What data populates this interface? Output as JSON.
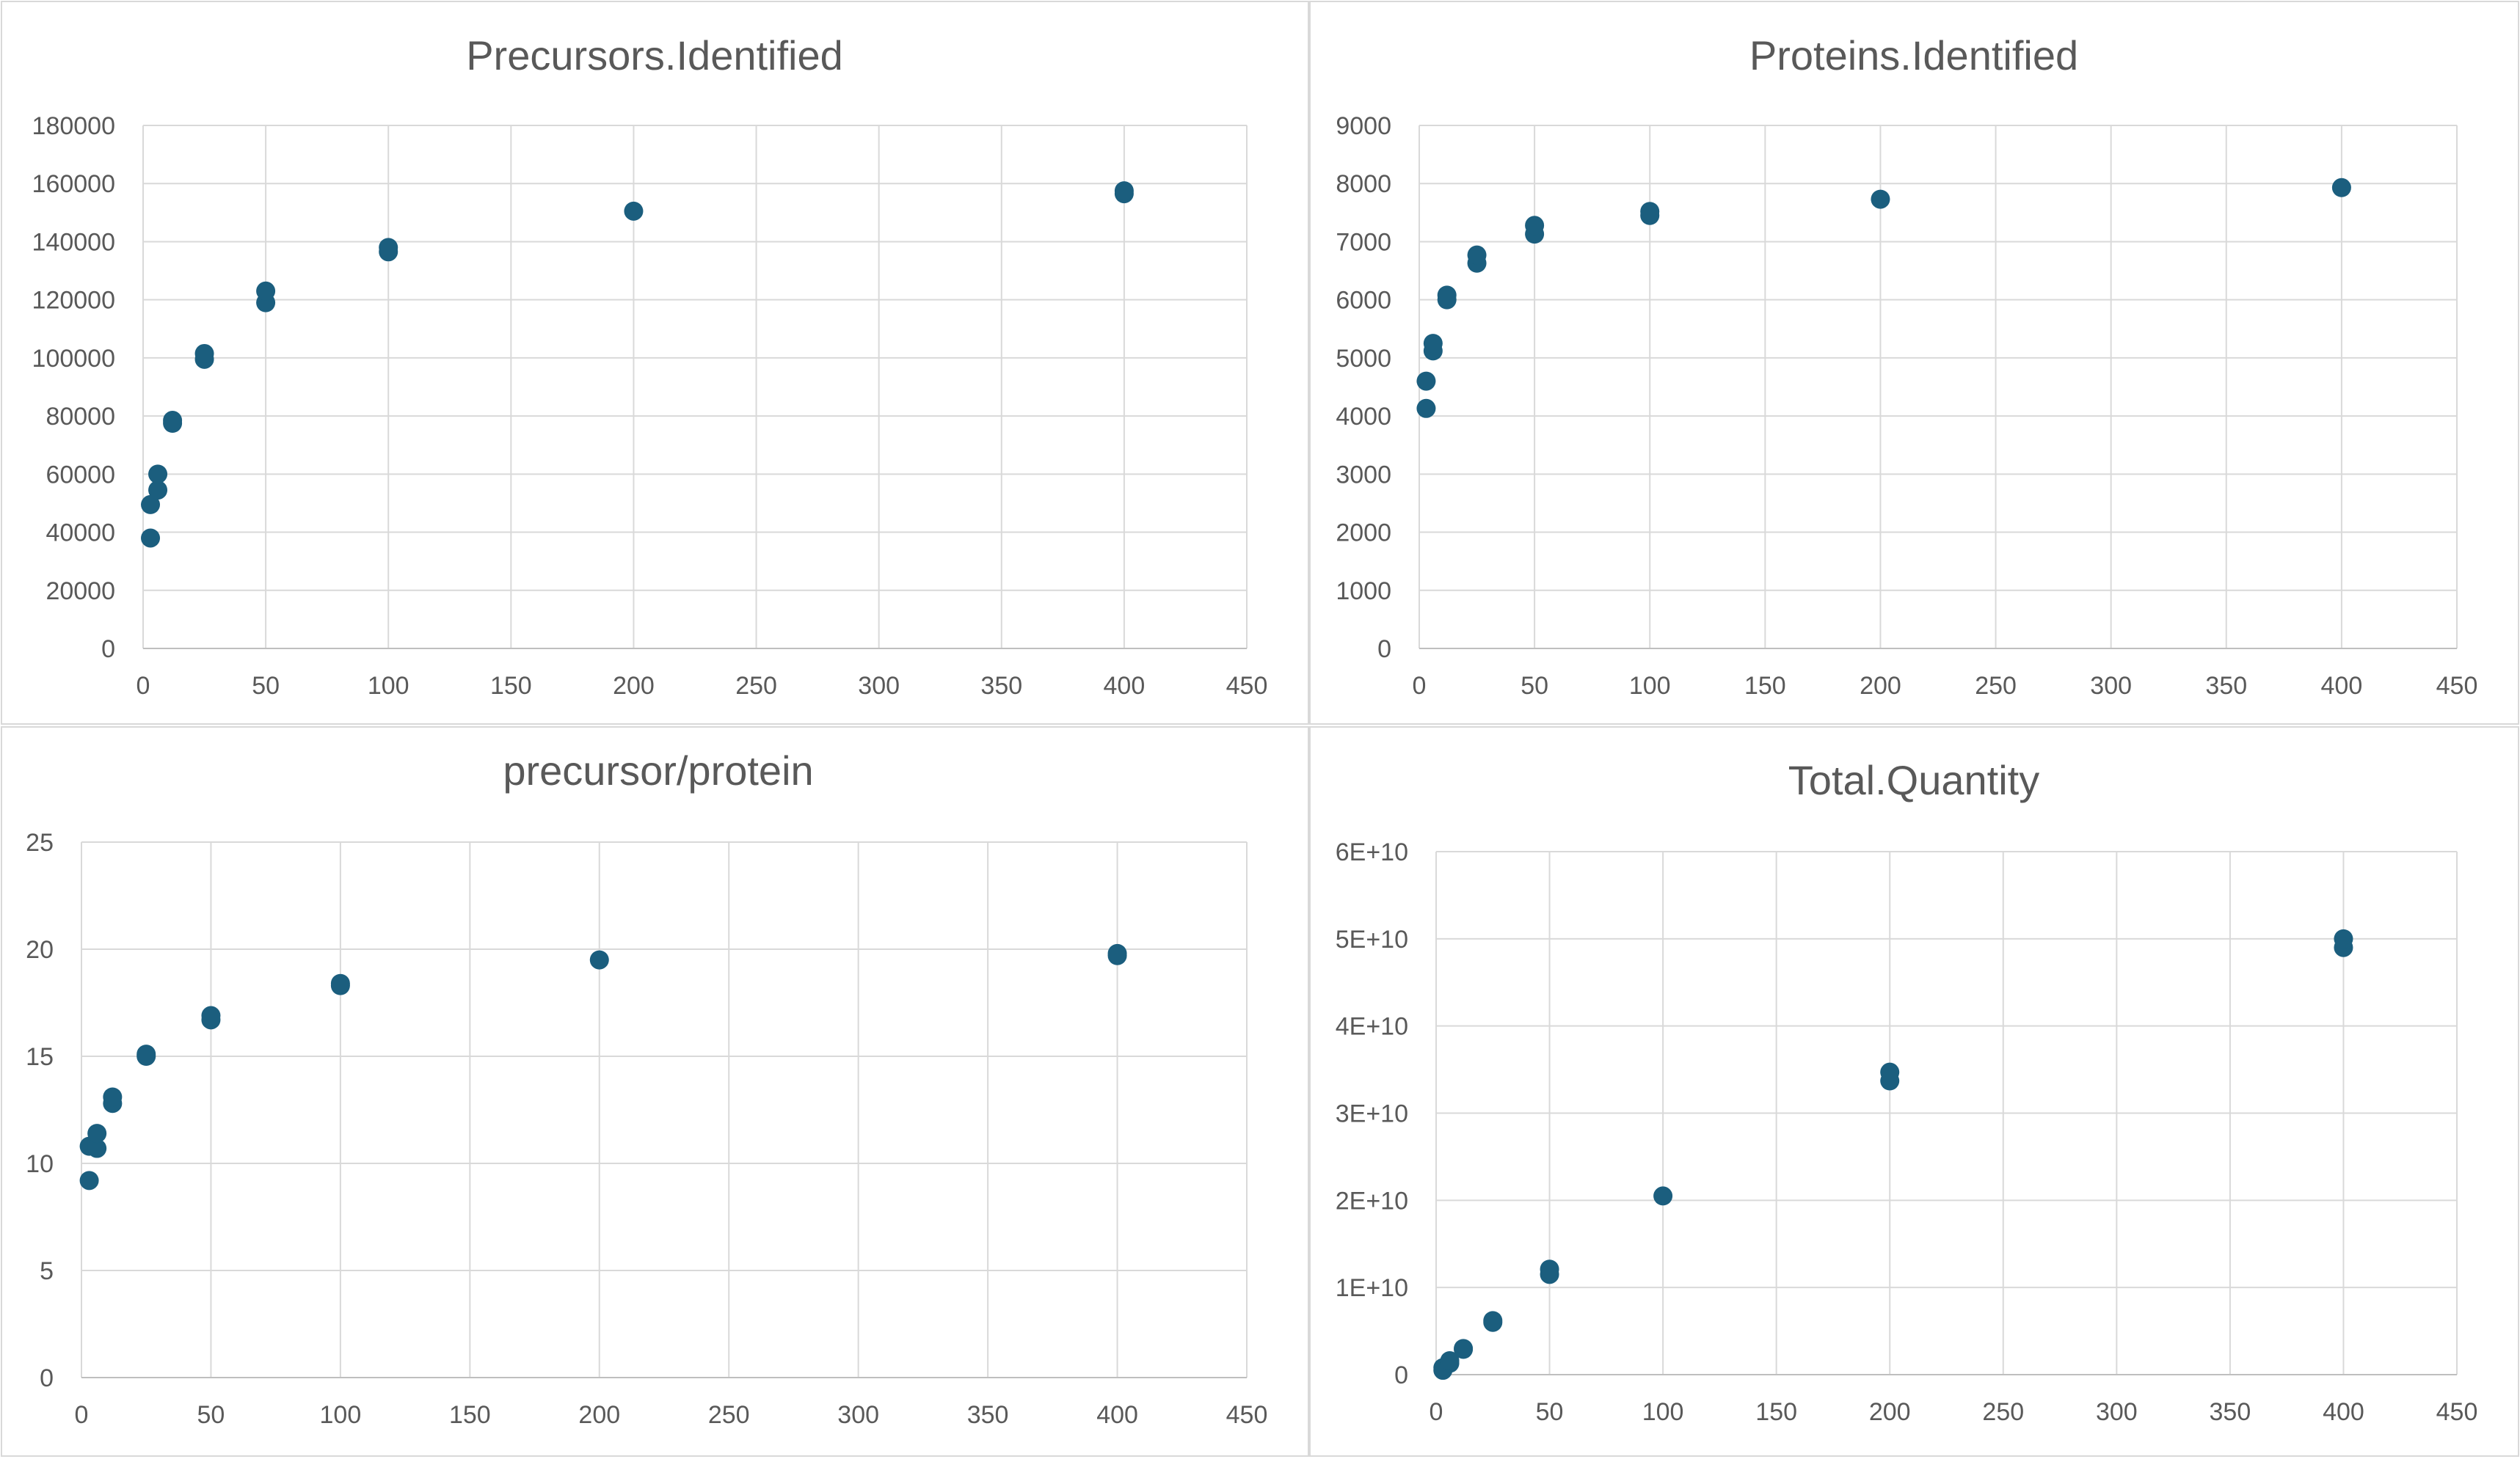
{
  "chart_data": [
    {
      "type": "scatter",
      "title": "Precursors.Identified",
      "xlabel": "",
      "ylabel": "",
      "xlim": [
        0,
        450
      ],
      "ylim": [
        0,
        180000
      ],
      "xticks": [
        "0",
        "50",
        "100",
        "150",
        "200",
        "250",
        "300",
        "350",
        "400",
        "450"
      ],
      "yticks": [
        "0",
        "20000",
        "40000",
        "60000",
        "80000",
        "100000",
        "120000",
        "140000",
        "160000",
        "180000"
      ],
      "grid": true,
      "legend": "none",
      "marker_color": "#1b5e7e",
      "points": [
        {
          "x": 3,
          "y": 38000
        },
        {
          "x": 3,
          "y": 49500
        },
        {
          "x": 6,
          "y": 54500
        },
        {
          "x": 6,
          "y": 60000
        },
        {
          "x": 12,
          "y": 77500
        },
        {
          "x": 12,
          "y": 78500
        },
        {
          "x": 25,
          "y": 99500
        },
        {
          "x": 25,
          "y": 101500
        },
        {
          "x": 50,
          "y": 119000
        },
        {
          "x": 50,
          "y": 123000
        },
        {
          "x": 100,
          "y": 136500
        },
        {
          "x": 100,
          "y": 138000
        },
        {
          "x": 200,
          "y": 150500
        },
        {
          "x": 400,
          "y": 156500
        },
        {
          "x": 400,
          "y": 157500
        }
      ]
    },
    {
      "type": "scatter",
      "title": "Proteins.Identified",
      "xlabel": "",
      "ylabel": "",
      "xlim": [
        0,
        450
      ],
      "ylim": [
        0,
        9000
      ],
      "xticks": [
        "0",
        "50",
        "100",
        "150",
        "200",
        "250",
        "300",
        "350",
        "400",
        "450"
      ],
      "yticks": [
        "0",
        "1000",
        "2000",
        "3000",
        "4000",
        "5000",
        "6000",
        "7000",
        "8000",
        "9000"
      ],
      "grid": true,
      "legend": "none",
      "marker_color": "#1b5e7e",
      "points": [
        {
          "x": 3,
          "y": 4130
        },
        {
          "x": 3,
          "y": 4600
        },
        {
          "x": 6,
          "y": 5120
        },
        {
          "x": 6,
          "y": 5250
        },
        {
          "x": 12,
          "y": 6000
        },
        {
          "x": 12,
          "y": 6080
        },
        {
          "x": 25,
          "y": 6630
        },
        {
          "x": 25,
          "y": 6770
        },
        {
          "x": 50,
          "y": 7130
        },
        {
          "x": 50,
          "y": 7280
        },
        {
          "x": 100,
          "y": 7450
        },
        {
          "x": 100,
          "y": 7520
        },
        {
          "x": 200,
          "y": 7730
        },
        {
          "x": 400,
          "y": 7930
        }
      ]
    },
    {
      "type": "scatter",
      "title": "precursor/protein",
      "xlabel": "",
      "ylabel": "",
      "xlim": [
        0,
        450
      ],
      "ylim": [
        0,
        25
      ],
      "xticks": [
        "0",
        "50",
        "100",
        "150",
        "200",
        "250",
        "300",
        "350",
        "400",
        "450"
      ],
      "yticks": [
        "0",
        "5",
        "10",
        "15",
        "20",
        "25"
      ],
      "grid": true,
      "legend": "none",
      "marker_color": "#1b5e7e",
      "points": [
        {
          "x": 3,
          "y": 9.2
        },
        {
          "x": 3,
          "y": 10.8
        },
        {
          "x": 6,
          "y": 10.7
        },
        {
          "x": 6,
          "y": 11.4
        },
        {
          "x": 12,
          "y": 12.8
        },
        {
          "x": 12,
          "y": 13.1
        },
        {
          "x": 25,
          "y": 15.0
        },
        {
          "x": 25,
          "y": 15.1
        },
        {
          "x": 50,
          "y": 16.7
        },
        {
          "x": 50,
          "y": 16.9
        },
        {
          "x": 100,
          "y": 18.3
        },
        {
          "x": 100,
          "y": 18.4
        },
        {
          "x": 200,
          "y": 19.5
        },
        {
          "x": 400,
          "y": 19.7
        },
        {
          "x": 400,
          "y": 19.8
        }
      ]
    },
    {
      "type": "scatter",
      "title": "Total.Quantity",
      "xlabel": "",
      "ylabel": "",
      "xlim": [
        0,
        450
      ],
      "ylim": [
        0,
        60000000000
      ],
      "xticks": [
        "0",
        "50",
        "100",
        "150",
        "200",
        "250",
        "300",
        "350",
        "400",
        "450"
      ],
      "yticks": [
        "0",
        "1E+10",
        "2E+10",
        "3E+10",
        "4E+10",
        "5E+10",
        "6E+10"
      ],
      "grid": true,
      "legend": "none",
      "marker_color": "#1b5e7e",
      "points": [
        {
          "x": 3,
          "y": 500000000
        },
        {
          "x": 3,
          "y": 800000000
        },
        {
          "x": 6,
          "y": 1300000000
        },
        {
          "x": 6,
          "y": 1600000000
        },
        {
          "x": 12,
          "y": 2900000000
        },
        {
          "x": 12,
          "y": 3000000000
        },
        {
          "x": 25,
          "y": 6000000000
        },
        {
          "x": 25,
          "y": 6200000000
        },
        {
          "x": 50,
          "y": 11500000000
        },
        {
          "x": 50,
          "y": 12100000000
        },
        {
          "x": 100,
          "y": 20500000000
        },
        {
          "x": 200,
          "y": 33700000000
        },
        {
          "x": 200,
          "y": 34700000000
        },
        {
          "x": 400,
          "y": 49000000000
        },
        {
          "x": 400,
          "y": 50000000000
        }
      ]
    }
  ]
}
